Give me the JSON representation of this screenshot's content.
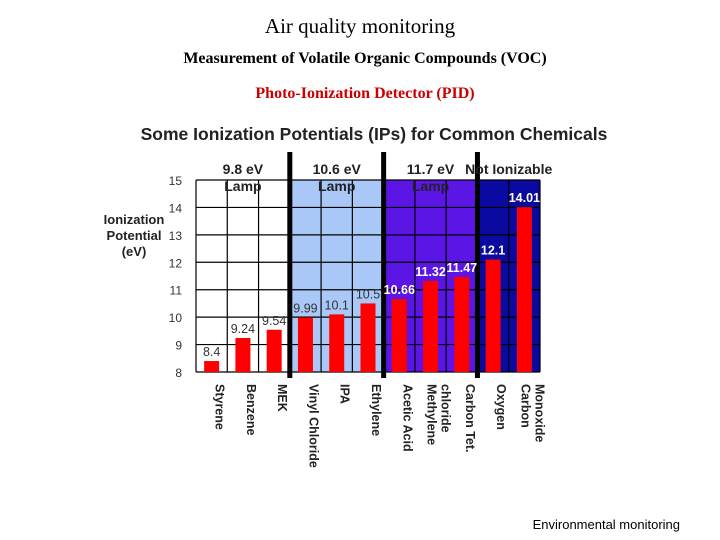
{
  "page": {
    "title": "Air quality monitoring",
    "subtitle": "Measurement of Volatile Organic Compounds (VOC)",
    "subtitle2": "Photo-Ionization Detector (PID)",
    "footer": "Environmental monitoring"
  },
  "colors": {
    "bar": "#ff0000",
    "lamp_9_8": "#ffffff",
    "lamp_10_6": "#a9c8f8",
    "lamp_11_7": "#5b16e6",
    "not_ionizable": "#0a0aa0",
    "title_red": "#cc0000"
  },
  "chart_data": {
    "type": "bar",
    "title": "Some Ionization Potentials (IPs) for Common Chemicals",
    "ylabel": [
      "Ionization",
      "Potential",
      "(eV)"
    ],
    "ylim": [
      8,
      15
    ],
    "yticks": [
      8,
      9,
      10,
      11,
      12,
      13,
      14,
      15
    ],
    "categories": [
      [
        "Styrene"
      ],
      [
        "Benzene"
      ],
      [
        "MEK"
      ],
      [
        "Vinyl Chloride"
      ],
      [
        "IPA"
      ],
      [
        "Ethylene"
      ],
      [
        "Acetic Acid"
      ],
      [
        "Methylene",
        "chloride"
      ],
      [
        "Carbon Tet."
      ],
      [
        "Oxygen"
      ],
      [
        "Carbon",
        "Monoxide"
      ]
    ],
    "values": [
      8.4,
      9.24,
      9.54,
      9.99,
      10.1,
      10.5,
      10.66,
      11.32,
      11.47,
      12.1,
      14.01
    ],
    "value_labels": [
      "8.4",
      "9.24",
      "9.54",
      "9.99",
      "10.1",
      "10.5",
      "10.66",
      "11.32",
      "11.47",
      "12.1",
      "14.01"
    ],
    "regions": [
      {
        "label": [
          "9.8 eV",
          "Lamp"
        ],
        "first": 0,
        "last": 2,
        "color": "#ffffff"
      },
      {
        "label": [
          "10.6 eV",
          "Lamp"
        ],
        "first": 3,
        "last": 5,
        "color": "#a9c8f8"
      },
      {
        "label": [
          "11.7 eV",
          "Lamp"
        ],
        "first": 6,
        "last": 8,
        "color": "#5b16e6"
      },
      {
        "label": [
          "Not Ionizable"
        ],
        "first": 9,
        "last": 10,
        "color": "#0a0aa0"
      }
    ],
    "grid": true
  }
}
